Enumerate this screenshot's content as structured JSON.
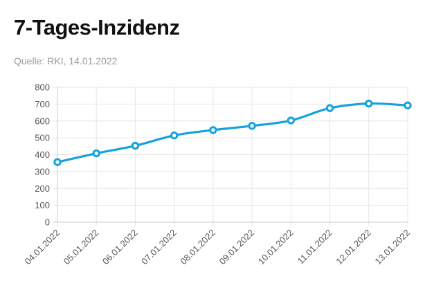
{
  "title": "7-Tages-Inzidenz",
  "source": "Quelle: RKI, 14.01.2022",
  "colors": {
    "line": "#14a3dc",
    "grid": "#e6e6e6",
    "axis": "#c8c8c8"
  },
  "chart_data": {
    "type": "line",
    "title": "7-Tages-Inzidenz",
    "xlabel": "",
    "ylabel": "",
    "categories": [
      "04.01.2022",
      "05.01.2022",
      "06.01.2022",
      "07.01.2022",
      "08.01.2022",
      "09.01.2022",
      "10.01.2022",
      "11.01.2022",
      "12.01.2022",
      "13.01.2022"
    ],
    "series": [
      {
        "values": [
          356,
          408,
          453,
          514,
          546,
          571,
          603,
          676,
          703,
          692
        ]
      }
    ],
    "ylim": [
      0,
      800
    ],
    "yticks": [
      "0",
      "100",
      "200",
      "300",
      "400",
      "500",
      "600",
      "700",
      "800"
    ],
    "grid": true,
    "legend": "none"
  }
}
